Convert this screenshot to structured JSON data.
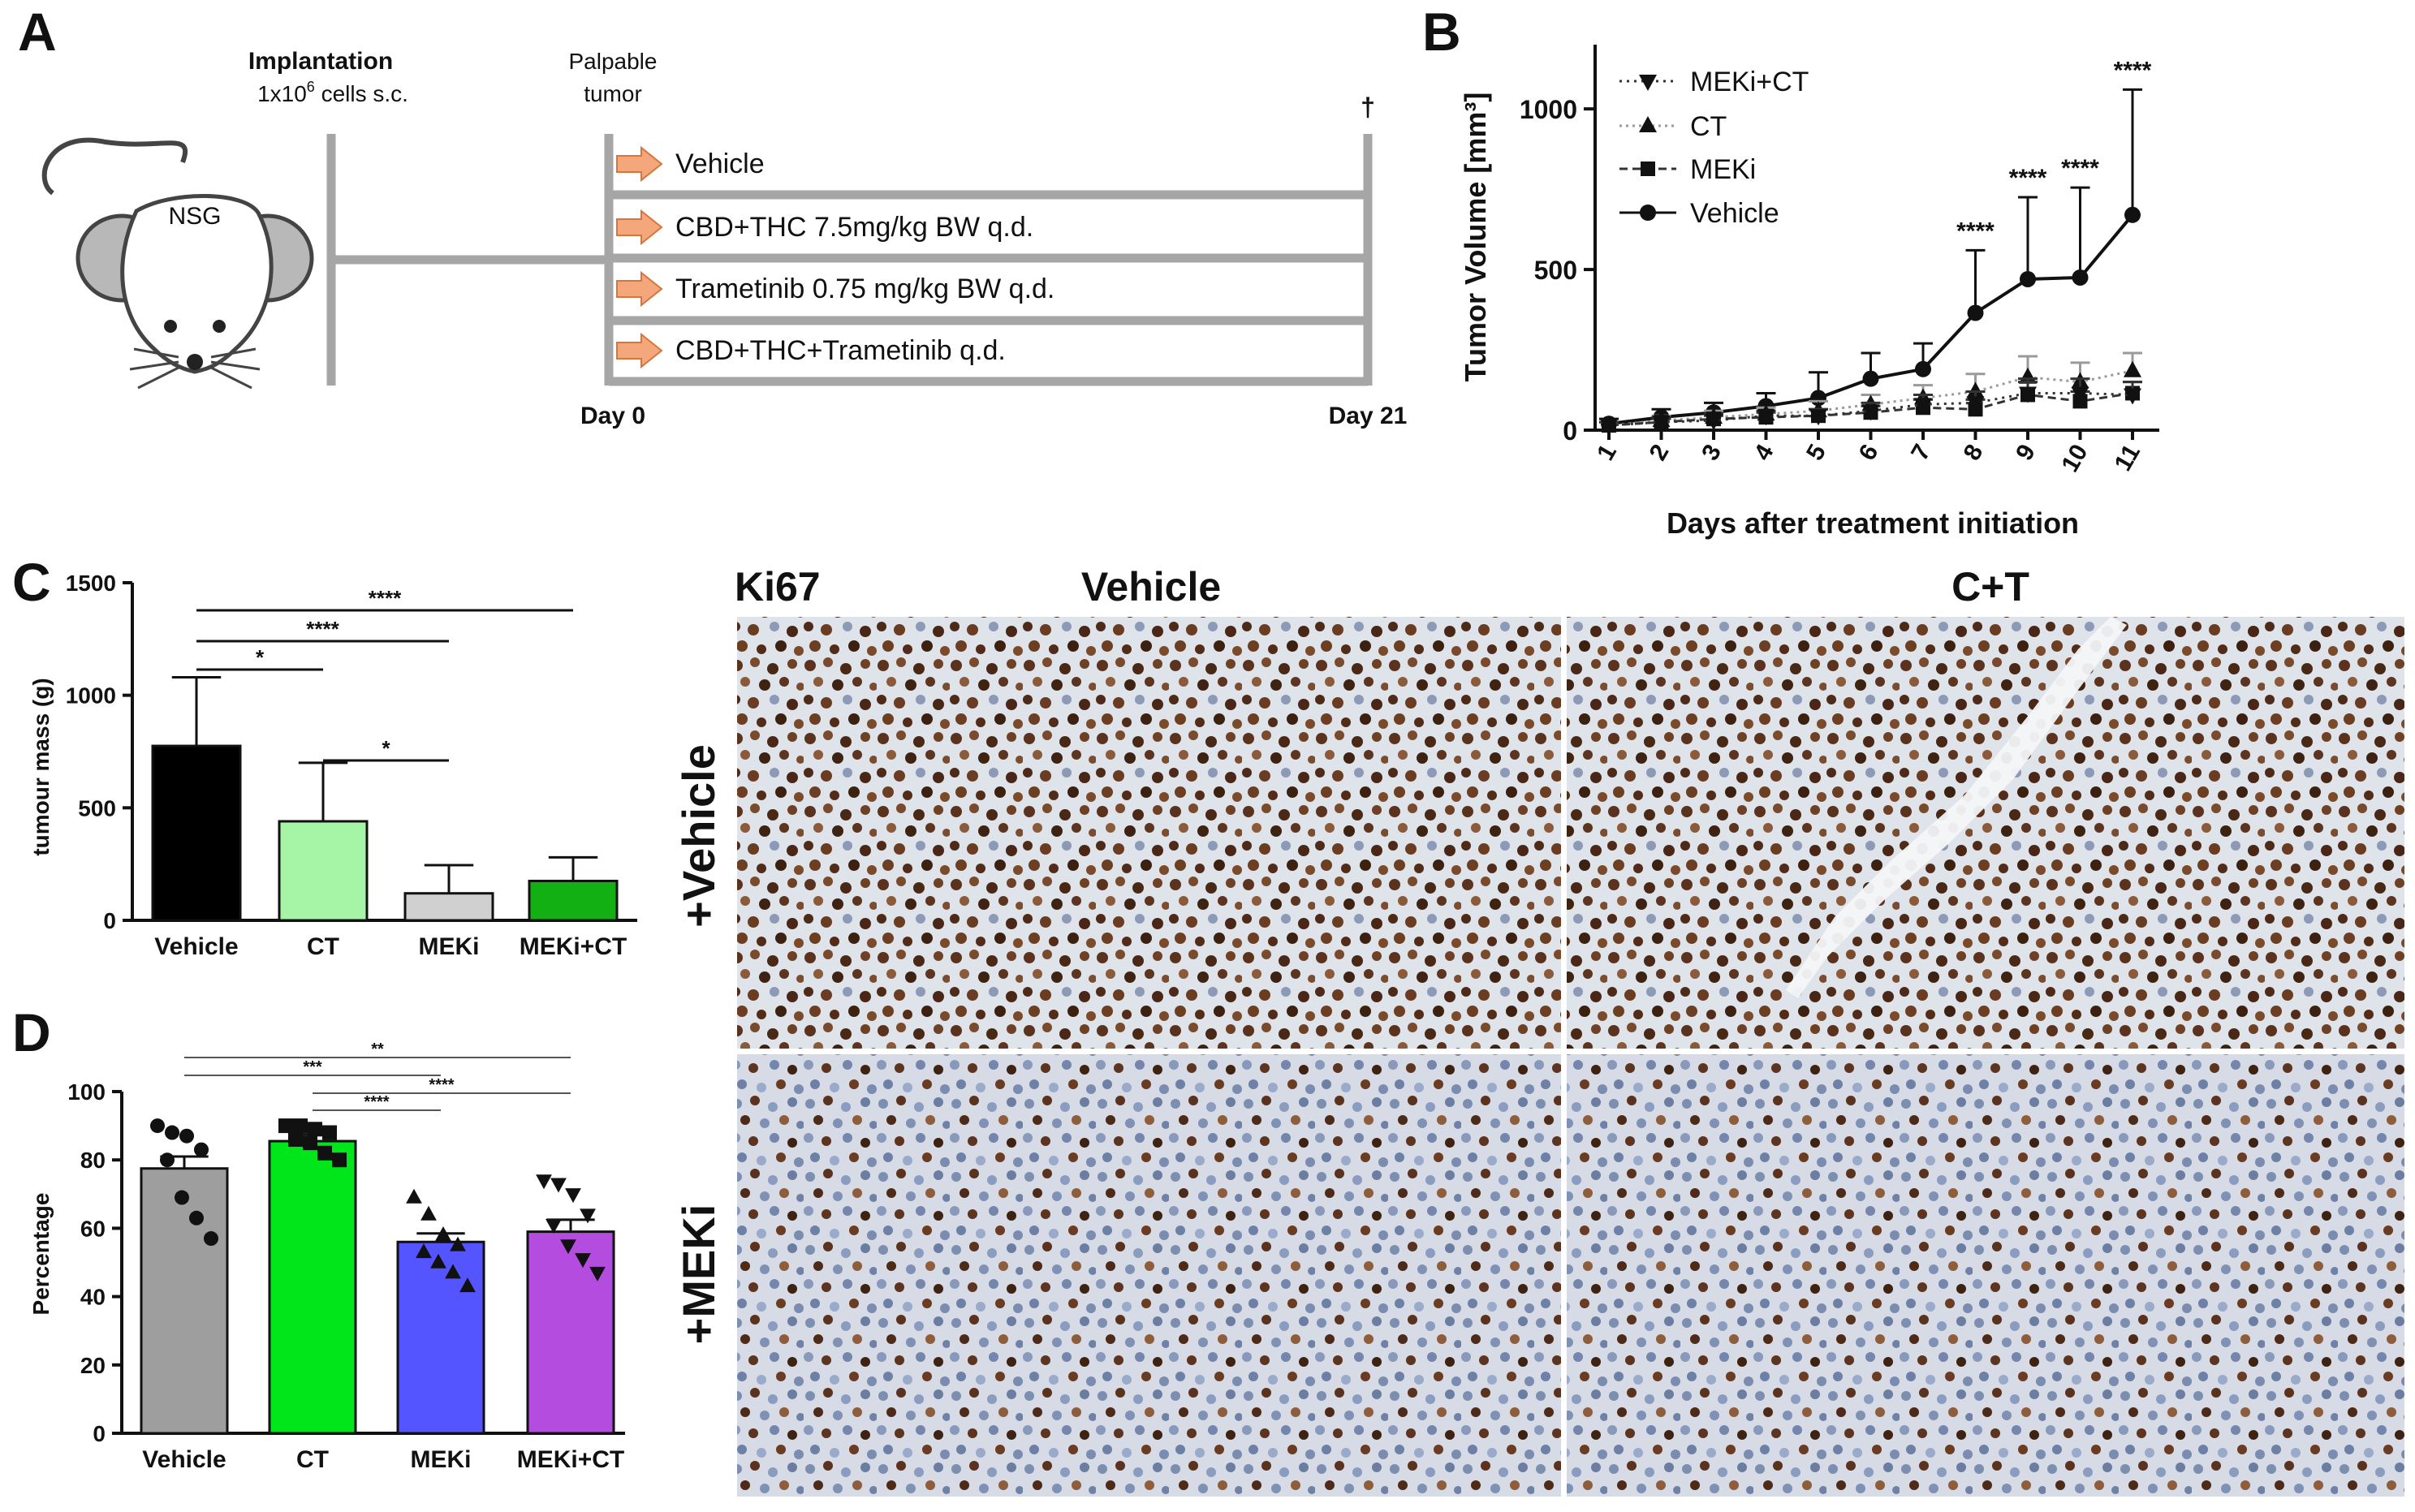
{
  "panels": {
    "a": "A",
    "b": "B",
    "c": "C",
    "d": "D"
  },
  "schematic": {
    "mouse_label": "NSG",
    "implant_title": "Implantation",
    "implant_detail_pre": "1x10",
    "implant_detail_sup": "6",
    "implant_detail_post": " cells s.c.",
    "palpable_line1": "Palpable",
    "palpable_line2": "tumor",
    "dagger": "†",
    "day0": "Day 0",
    "day21": "Day 21",
    "groups": [
      "Vehicle",
      "CBD+THC 7.5mg/kg BW q.d.",
      "Trametinib 0.75 mg/kg BW q.d.",
      "CBD+THC+Trametinib q.d."
    ],
    "arrow_color": "#f4a77a",
    "line_color": "#a6a6a6"
  },
  "chart_data": [
    {
      "id": "B",
      "type": "line",
      "title": "",
      "xlabel": "Days after treatment initiation",
      "ylabel": "Tumor Volume [mm³]",
      "x": [
        1,
        2,
        3,
        4,
        5,
        6,
        7,
        8,
        9,
        10,
        11
      ],
      "ylim": [
        0,
        1200
      ],
      "yticks": [
        0,
        500,
        1000
      ],
      "legend": [
        "MEKi+CT",
        "CT",
        "MEKi",
        "Vehicle"
      ],
      "series": [
        {
          "name": "Vehicle",
          "marker": "circle",
          "values": [
            20,
            40,
            55,
            75,
            100,
            160,
            190,
            365,
            470,
            475,
            670
          ],
          "err": [
            15,
            25,
            30,
            40,
            80,
            80,
            80,
            195,
            255,
            280,
            390
          ]
        },
        {
          "name": "CT",
          "marker": "triangle-up",
          "values": [
            15,
            30,
            40,
            50,
            60,
            80,
            100,
            120,
            165,
            150,
            185
          ],
          "err": [
            10,
            15,
            20,
            20,
            30,
            30,
            40,
            55,
            65,
            60,
            55
          ]
        },
        {
          "name": "MEKi",
          "marker": "square",
          "values": [
            15,
            25,
            35,
            40,
            45,
            55,
            70,
            65,
            110,
            90,
            115
          ],
          "err": [
            10,
            10,
            15,
            15,
            20,
            20,
            25,
            30,
            40,
            30,
            35
          ]
        },
        {
          "name": "MEKi+CT",
          "marker": "triangle-down",
          "values": [
            15,
            25,
            30,
            45,
            45,
            60,
            80,
            85,
            115,
            115,
            110
          ],
          "err": [
            10,
            15,
            15,
            15,
            20,
            25,
            30,
            35,
            45,
            45,
            40
          ]
        }
      ],
      "significance": [
        {
          "x": 8,
          "label": "****"
        },
        {
          "x": 9,
          "label": "****"
        },
        {
          "x": 10,
          "label": "****"
        },
        {
          "x": 11,
          "label": "****"
        }
      ]
    },
    {
      "id": "C",
      "type": "bar",
      "title": "",
      "xlabel": "",
      "ylabel": "tumour mass (g)",
      "categories": [
        "Vehicle",
        "CT",
        "MEKi",
        "MEKi+CT"
      ],
      "values": [
        775,
        440,
        120,
        175
      ],
      "err": [
        305,
        260,
        125,
        105
      ],
      "colors": [
        "#000000",
        "#a6f5a6",
        "#d0d0d0",
        "#12b012"
      ],
      "ylim": [
        0,
        1500
      ],
      "yticks": [
        0,
        500,
        1000,
        1500
      ],
      "comparisons": [
        {
          "from": "Vehicle",
          "to": "MEKi+CT",
          "label": "****"
        },
        {
          "from": "Vehicle",
          "to": "MEKi",
          "label": "****"
        },
        {
          "from": "Vehicle",
          "to": "CT",
          "label": "*"
        },
        {
          "from": "CT",
          "to": "MEKi",
          "label": "*"
        }
      ]
    },
    {
      "id": "D",
      "type": "bar",
      "title": "",
      "xlabel": "",
      "ylabel": "Percentage",
      "categories": [
        "Vehicle",
        "CT",
        "MEKi",
        "MEKi+CT"
      ],
      "values": [
        77.5,
        85.5,
        56,
        59
      ],
      "err": [
        3.5,
        2,
        2.5,
        3.5
      ],
      "colors": [
        "#9e9e9e",
        "#00e61b",
        "#5555ff",
        "#b44ce0"
      ],
      "markers": [
        "circle",
        "square",
        "triangle-up",
        "triangle-down"
      ],
      "points": [
        [
          90,
          88,
          87,
          83,
          80,
          69,
          63,
          57
        ],
        [
          90,
          90,
          89,
          88,
          86,
          85,
          82,
          80
        ],
        [
          69,
          64,
          58,
          55,
          53,
          50,
          47,
          43
        ],
        [
          74,
          73,
          70,
          64,
          61,
          55,
          51,
          47
        ]
      ],
      "ylim": [
        0,
        100
      ],
      "yticks": [
        0,
        20,
        40,
        60,
        80,
        100
      ],
      "comparisons": [
        {
          "from": "Vehicle",
          "to": "MEKi+CT",
          "label": "**"
        },
        {
          "from": "Vehicle",
          "to": "MEKi",
          "label": "***"
        },
        {
          "from": "CT",
          "to": "MEKi+CT",
          "label": "****"
        },
        {
          "from": "CT",
          "to": "MEKi",
          "label": "****"
        }
      ]
    }
  ],
  "micrographs": {
    "stain": "Ki67",
    "col_labels": [
      "Vehicle",
      "C+T"
    ],
    "row_labels": [
      "+Vehicle",
      "+MEKi"
    ]
  }
}
